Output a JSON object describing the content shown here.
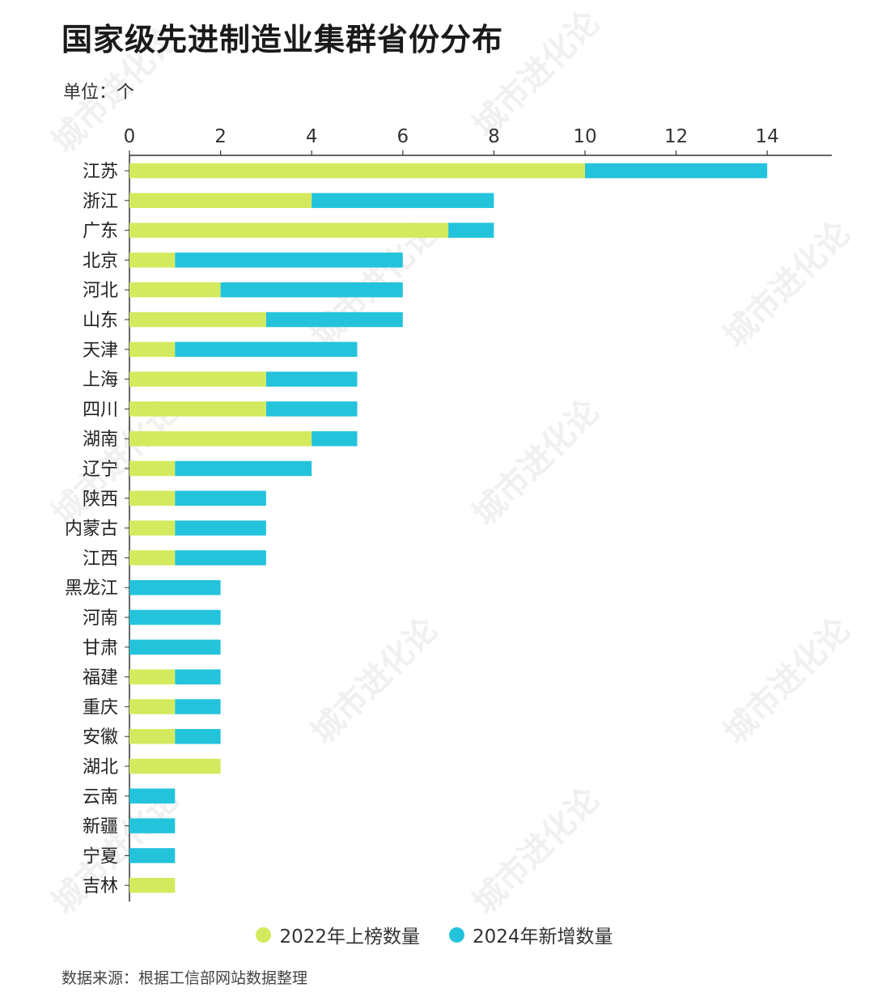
{
  "title": "国家级先进制造业集群省份分布",
  "unit_label": "单位：个",
  "source": "数据来源：根据工信部网站数据整理",
  "watermark": "城市进化论",
  "colors": {
    "series_2022": "#d4ea5e",
    "series_2024": "#24c3dc",
    "axis": "#333333"
  },
  "chart_data": {
    "type": "bar",
    "orientation": "horizontal",
    "stacked": true,
    "xlim": [
      0,
      15
    ],
    "xticks": [
      0,
      2,
      4,
      6,
      8,
      10,
      12,
      14
    ],
    "xtick_labels": [
      "0",
      "2",
      "4",
      "6",
      "8",
      "10",
      "12",
      "14"
    ],
    "categories": [
      "江苏",
      "浙江",
      "广东",
      "北京",
      "河北",
      "山东",
      "天津",
      "上海",
      "四川",
      "湖南",
      "辽宁",
      "陕西",
      "内蒙古",
      "江西",
      "黑龙江",
      "河南",
      "甘肃",
      "福建",
      "重庆",
      "安徽",
      "湖北",
      "云南",
      "新疆",
      "宁夏",
      "吉林"
    ],
    "series": [
      {
        "name": "2022年上榜数量",
        "values": [
          10,
          4,
          7,
          1,
          2,
          3,
          1,
          3,
          3,
          4,
          1,
          1,
          1,
          1,
          0,
          0,
          0,
          1,
          1,
          1,
          2,
          0,
          0,
          0,
          1
        ]
      },
      {
        "name": "2024年新增数量",
        "values": [
          4,
          4,
          1,
          5,
          4,
          3,
          4,
          2,
          2,
          1,
          3,
          2,
          2,
          2,
          2,
          2,
          2,
          1,
          1,
          1,
          0,
          1,
          1,
          1,
          0
        ]
      }
    ],
    "legend_position": "bottom",
    "grid": false
  }
}
